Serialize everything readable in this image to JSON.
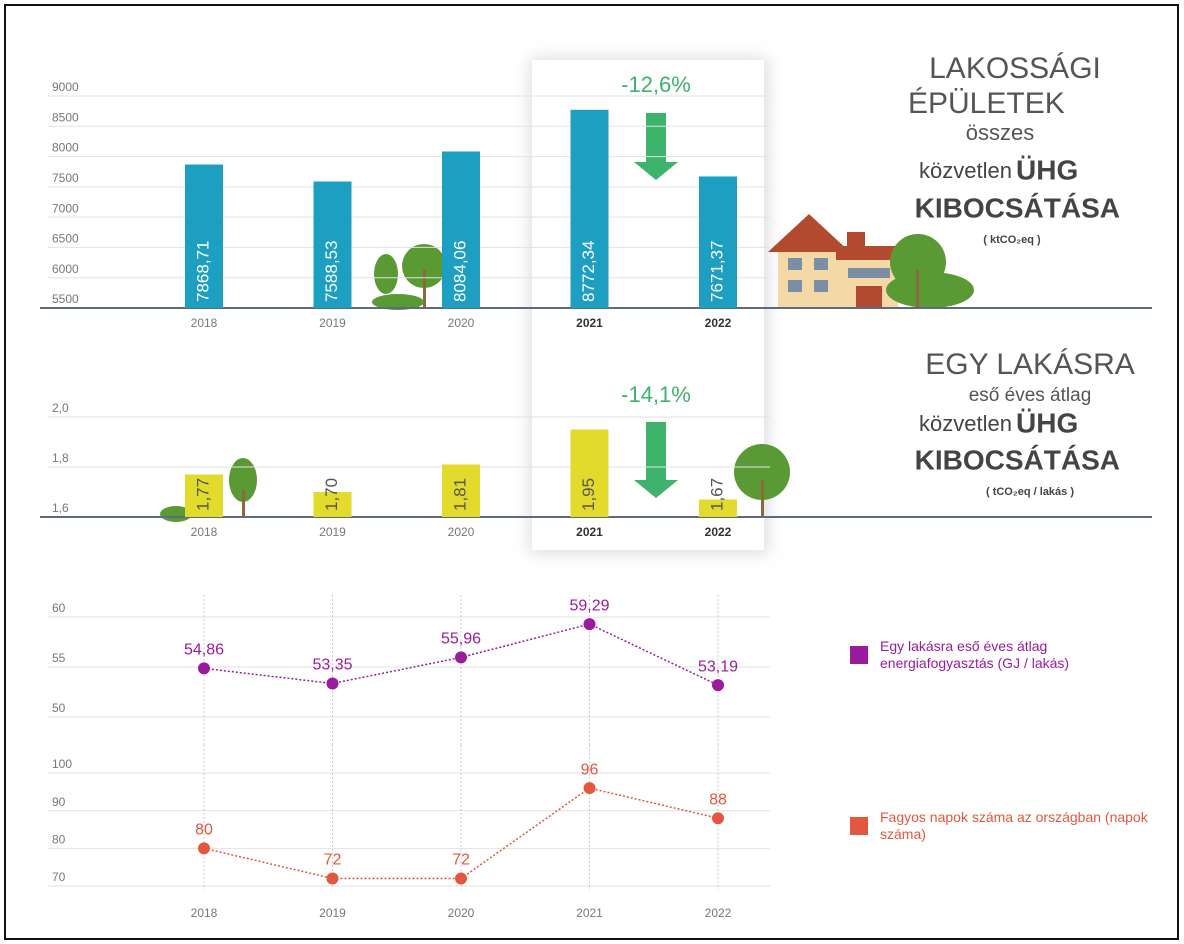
{
  "chart_data": [
    {
      "type": "bar",
      "title_lines": [
        "LAKOSSÁGI",
        "ÉPÜLETEK",
        "összes",
        "közvetlen",
        "ÜHG",
        "KIBOCSÁTÁSA"
      ],
      "unit": "( ktCO₂eq )",
      "annotation": "-12,6%",
      "categories": [
        "2018",
        "2019",
        "2020",
        "2021",
        "2022"
      ],
      "values": [
        7868.71,
        7588.53,
        8084.06,
        8772.34,
        7671.37
      ],
      "value_labels": [
        "7868,71",
        "7588,53",
        "8084,06",
        "8772,34",
        "7671,37"
      ],
      "color": "#1c9fc1",
      "ylim": [
        5500,
        9000
      ],
      "yticks": [
        5500,
        6000,
        6500,
        7000,
        7500,
        8000,
        8500,
        9000
      ],
      "grid": true
    },
    {
      "type": "bar",
      "title_lines": [
        "EGY LAKÁSRA",
        "eső éves átlag",
        "közvetlen",
        "ÜHG",
        "KIBOCSÁTÁSA"
      ],
      "unit": "( tCO₂eq / lakás )",
      "annotation": "-14,1%",
      "categories": [
        "2018",
        "2019",
        "2020",
        "2021",
        "2022"
      ],
      "values": [
        1.77,
        1.7,
        1.81,
        1.95,
        1.67
      ],
      "value_labels": [
        "1,77",
        "1,70",
        "1,81",
        "1,95",
        "1,67"
      ],
      "color": "#e2db2c",
      "ylim": [
        1.6,
        2.0
      ],
      "yticks": [
        {
          "value": 1.6,
          "label": "1,6"
        },
        {
          "value": 1.8,
          "label": "1,8"
        },
        {
          "value": 2.0,
          "label": "2,0"
        }
      ],
      "grid": true
    },
    {
      "type": "line",
      "categories": [
        "2018",
        "2019",
        "2020",
        "2021",
        "2022"
      ],
      "series": [
        {
          "name": "Egy lakásra eső éves átlag energiafogyasztás (GJ / lakás)",
          "color": "#9b1b9e",
          "values": [
            54.86,
            53.35,
            55.96,
            59.29,
            53.19
          ],
          "value_labels": [
            "54,86",
            "53,35",
            "55,96",
            "59,29",
            "53,19"
          ]
        }
      ],
      "ylim": [
        50,
        60
      ],
      "yticks": [
        50,
        55,
        60
      ],
      "grid": true
    },
    {
      "type": "line",
      "categories": [
        "2018",
        "2019",
        "2020",
        "2021",
        "2022"
      ],
      "series": [
        {
          "name": "Fagyos napok száma az országban (napok száma)",
          "color": "#e4573f",
          "values": [
            80,
            72,
            72,
            96,
            88
          ]
        }
      ],
      "ylim": [
        70,
        100
      ],
      "yticks": [
        70,
        80,
        90,
        100
      ],
      "grid": true
    }
  ]
}
